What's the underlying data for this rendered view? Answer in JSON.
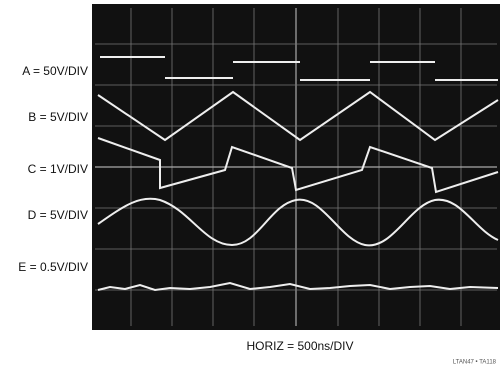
{
  "channels": [
    {
      "label": "A = 50V/DIV"
    },
    {
      "label": "B = 5V/DIV"
    },
    {
      "label": "C = 1V/DIV"
    },
    {
      "label": "D = 5V/DIV"
    },
    {
      "label": "E = 0.5V/DIV"
    }
  ],
  "horizontal": "HORIZ = 500ns/DIV",
  "figure_id": "LTAN47 • TA118"
}
